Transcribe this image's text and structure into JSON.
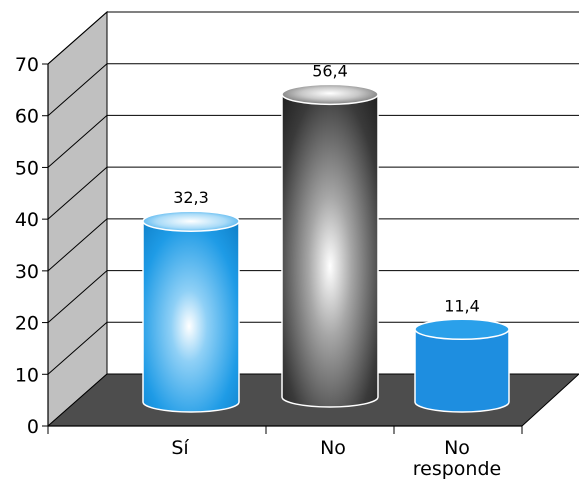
{
  "chart_data": {
    "type": "bar",
    "categories": [
      "Sí",
      "No",
      "No responde"
    ],
    "category_lines": [
      [
        "Sí"
      ],
      [
        "No"
      ],
      [
        "No",
        "responde"
      ]
    ],
    "values": [
      32.3,
      56.4,
      11.4
    ],
    "data_labels": [
      "32,3",
      "56,4",
      "11,4"
    ],
    "yticks": [
      "0",
      "10",
      "20",
      "30",
      "40",
      "50",
      "60",
      "70"
    ],
    "ylim": [
      0,
      70
    ],
    "grid": true,
    "style": "3d-cylinder",
    "title": "",
    "xlabel": "",
    "ylabel": "",
    "colors": {
      "wall": "#c0c0c0",
      "floor": "#4d4d4d",
      "bar_si": "#1e9be6",
      "bar_no": "#3a3a3a",
      "bar_no_responde": "#1e8ee0",
      "grid": "#000000"
    }
  }
}
